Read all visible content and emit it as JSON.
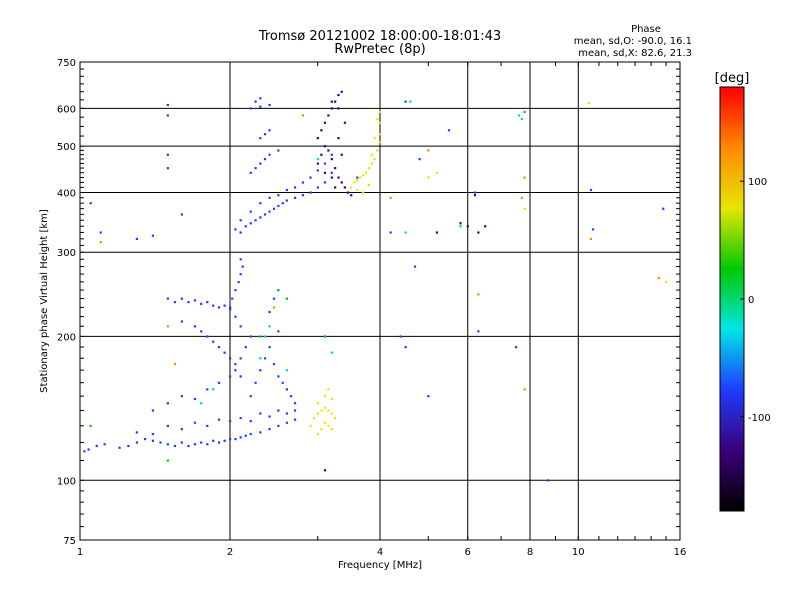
{
  "chart_data": {
    "type": "scatter",
    "title": "Tromsø 20121002 18:00:00-18:01:43",
    "subtitle": "RwPretec (8p)",
    "xlabel": "Frequency [MHz]",
    "ylabel": "Stationary phase Virtual Height [km]",
    "x_scale": "log",
    "y_scale": "log",
    "xlim": [
      1,
      16
    ],
    "ylim": [
      75,
      750
    ],
    "x_ticks": [
      1,
      2,
      4,
      6,
      8,
      10,
      16
    ],
    "y_ticks": [
      75,
      100,
      200,
      300,
      400,
      500,
      600,
      750
    ],
    "grid": true,
    "phase_info": {
      "heading": "Phase",
      "line1": "mean, sd,O: -90.0, 16.1",
      "line2": "mean, sd,X: 82.6, 21.3"
    },
    "colorbar": {
      "label": "[deg]",
      "range": [
        -180,
        180
      ],
      "ticks": [
        -100,
        0,
        100
      ],
      "colors": [
        "#000000",
        "#3a007a",
        "#1e3cff",
        "#00e6e6",
        "#00c800",
        "#e6e600",
        "#ff8800",
        "#ff0000"
      ]
    },
    "series": [
      {
        "name": "O",
        "color": "#1e3cff",
        "description": "",
        "points": [
          [
            1.02,
            115
          ],
          [
            1.04,
            116
          ],
          [
            1.08,
            118
          ],
          [
            1.12,
            119
          ],
          [
            1.2,
            117
          ],
          [
            1.25,
            118
          ],
          [
            1.3,
            120
          ],
          [
            1.35,
            122
          ],
          [
            1.4,
            121
          ],
          [
            1.45,
            120
          ],
          [
            1.5,
            119
          ],
          [
            1.55,
            118
          ],
          [
            1.6,
            120
          ],
          [
            1.65,
            118
          ],
          [
            1.7,
            119
          ],
          [
            1.75,
            120
          ],
          [
            1.8,
            119
          ],
          [
            1.85,
            121
          ],
          [
            1.9,
            120
          ],
          [
            1.95,
            121
          ],
          [
            2.0,
            122
          ],
          [
            2.05,
            122
          ],
          [
            2.1,
            123
          ],
          [
            2.15,
            124
          ],
          [
            2.2,
            125
          ],
          [
            2.3,
            126
          ],
          [
            2.4,
            128
          ],
          [
            2.5,
            130
          ],
          [
            2.6,
            132
          ],
          [
            2.7,
            134
          ],
          [
            1.3,
            126
          ],
          [
            1.4,
            125
          ],
          [
            1.5,
            130
          ],
          [
            1.6,
            128
          ],
          [
            1.7,
            132
          ],
          [
            1.8,
            130
          ],
          [
            1.9,
            134
          ],
          [
            2.0,
            133
          ],
          [
            2.1,
            135
          ],
          [
            2.2,
            133
          ],
          [
            2.3,
            138
          ],
          [
            2.4,
            136
          ],
          [
            2.5,
            140
          ],
          [
            2.6,
            138
          ],
          [
            2.7,
            140
          ],
          [
            1.4,
            140
          ],
          [
            1.5,
            145
          ],
          [
            1.6,
            150
          ],
          [
            1.7,
            148
          ],
          [
            1.8,
            155
          ],
          [
            1.9,
            160
          ],
          [
            2.0,
            165
          ],
          [
            2.05,
            175
          ],
          [
            2.1,
            180
          ],
          [
            2.15,
            190
          ],
          [
            2.2,
            200
          ],
          [
            2.1,
            210
          ],
          [
            2.05,
            220
          ],
          [
            2.0,
            230
          ],
          [
            2.02,
            240
          ],
          [
            2.05,
            250
          ],
          [
            2.08,
            260
          ],
          [
            2.1,
            270
          ],
          [
            2.12,
            280
          ],
          [
            2.1,
            290
          ],
          [
            1.5,
            240
          ],
          [
            1.55,
            236
          ],
          [
            1.6,
            240
          ],
          [
            1.65,
            236
          ],
          [
            1.7,
            238
          ],
          [
            1.75,
            234
          ],
          [
            1.8,
            236
          ],
          [
            1.85,
            232
          ],
          [
            1.9,
            230
          ],
          [
            1.95,
            232
          ],
          [
            2.0,
            228
          ],
          [
            1.6,
            215
          ],
          [
            1.7,
            210
          ],
          [
            1.75,
            205
          ],
          [
            1.8,
            200
          ],
          [
            1.85,
            195
          ],
          [
            1.9,
            190
          ],
          [
            1.95,
            185
          ],
          [
            2.0,
            180
          ],
          [
            2.05,
            170
          ],
          [
            2.1,
            165
          ],
          [
            2.2,
            150
          ],
          [
            2.25,
            160
          ],
          [
            2.3,
            170
          ],
          [
            2.35,
            180
          ],
          [
            2.4,
            190
          ],
          [
            2.45,
            175
          ],
          [
            2.5,
            165
          ],
          [
            2.55,
            160
          ],
          [
            2.6,
            155
          ],
          [
            2.65,
            150
          ],
          [
            2.7,
            145
          ],
          [
            2.5,
            205
          ],
          [
            2.4,
            225
          ],
          [
            2.45,
            240
          ],
          [
            2.5,
            250
          ],
          [
            2.05,
            335
          ],
          [
            2.1,
            330
          ],
          [
            2.15,
            340
          ],
          [
            2.2,
            345
          ],
          [
            2.25,
            350
          ],
          [
            2.3,
            355
          ],
          [
            2.35,
            360
          ],
          [
            2.4,
            365
          ],
          [
            2.45,
            370
          ],
          [
            2.5,
            375
          ],
          [
            2.55,
            380
          ],
          [
            2.6,
            385
          ],
          [
            2.7,
            390
          ],
          [
            2.8,
            395
          ],
          [
            2.9,
            400
          ],
          [
            3.0,
            410
          ],
          [
            3.1,
            420
          ],
          [
            3.2,
            440
          ],
          [
            2.1,
            350
          ],
          [
            2.2,
            365
          ],
          [
            2.3,
            380
          ],
          [
            2.4,
            390
          ],
          [
            2.5,
            395
          ],
          [
            2.6,
            405
          ],
          [
            2.7,
            410
          ],
          [
            2.8,
            420
          ],
          [
            2.9,
            430
          ],
          [
            3.0,
            445
          ],
          [
            3.1,
            460
          ],
          [
            3.2,
            480
          ],
          [
            2.2,
            440
          ],
          [
            2.25,
            450
          ],
          [
            2.3,
            460
          ],
          [
            2.35,
            470
          ],
          [
            2.4,
            480
          ],
          [
            2.5,
            490
          ],
          [
            2.3,
            520
          ],
          [
            2.35,
            530
          ],
          [
            2.4,
            540
          ],
          [
            2.2,
            600
          ],
          [
            2.3,
            605
          ],
          [
            2.4,
            610
          ],
          [
            2.25,
            620
          ],
          [
            2.3,
            630
          ],
          [
            1.5,
            610
          ],
          [
            1.5,
            580
          ],
          [
            1.5,
            480
          ],
          [
            1.5,
            450
          ],
          [
            1.6,
            360
          ],
          [
            1.4,
            325
          ],
          [
            1.3,
            320
          ],
          [
            1.1,
            330
          ],
          [
            1.05,
            380
          ],
          [
            4.5,
            620
          ],
          [
            4.8,
            470
          ],
          [
            5.5,
            540
          ],
          [
            4.4,
            200
          ],
          [
            4.5,
            190
          ],
          [
            4.7,
            280
          ],
          [
            5.0,
            150
          ],
          [
            6.3,
            205
          ],
          [
            6.2,
            400
          ],
          [
            7.5,
            190
          ],
          [
            8.7,
            100
          ],
          [
            10.6,
            405
          ],
          [
            10.7,
            335
          ],
          [
            14.8,
            370
          ],
          [
            3.6,
            430
          ],
          [
            4.2,
            330
          ]
        ]
      },
      {
        "name": "",
        "color": "#3a007a",
        "description": "",
        "points": [
          [
            3.0,
            520
          ],
          [
            3.05,
            540
          ],
          [
            3.1,
            560
          ],
          [
            3.15,
            580
          ],
          [
            3.2,
            600
          ],
          [
            3.25,
            620
          ],
          [
            3.3,
            640
          ],
          [
            3.35,
            650
          ],
          [
            3.1,
            500
          ],
          [
            3.15,
            490
          ],
          [
            3.2,
            470
          ],
          [
            3.25,
            450
          ],
          [
            3.3,
            430
          ],
          [
            3.35,
            420
          ],
          [
            3.4,
            410
          ],
          [
            3.45,
            400
          ],
          [
            3.5,
            395
          ],
          [
            3.2,
            620
          ],
          [
            3.3,
            600
          ],
          [
            3.4,
            560
          ],
          [
            3.3,
            520
          ],
          [
            3.35,
            480
          ],
          [
            3.0,
            460
          ],
          [
            3.05,
            480
          ],
          [
            3.1,
            440
          ],
          [
            3.2,
            430
          ],
          [
            3.25,
            410
          ],
          [
            5.8,
            345
          ],
          [
            6.0,
            340
          ],
          [
            6.3,
            330
          ],
          [
            6.5,
            340
          ],
          [
            6.2,
            395
          ],
          [
            5.2,
            330
          ],
          [
            3.1,
            105
          ]
        ]
      },
      {
        "name": "X",
        "color": "#e6e600",
        "description": "",
        "points": [
          [
            3.5,
            410
          ],
          [
            3.55,
            420
          ],
          [
            3.6,
            425
          ],
          [
            3.65,
            430
          ],
          [
            3.7,
            435
          ],
          [
            3.75,
            440
          ],
          [
            3.8,
            450
          ],
          [
            3.85,
            460
          ],
          [
            3.9,
            470
          ],
          [
            3.95,
            490
          ],
          [
            4.0,
            510
          ],
          [
            4.0,
            530
          ],
          [
            4.0,
            560
          ],
          [
            4.0,
            590
          ],
          [
            3.95,
            570
          ],
          [
            3.9,
            520
          ],
          [
            3.85,
            480
          ],
          [
            3.6,
            405
          ],
          [
            3.7,
            400
          ],
          [
            3.8,
            415
          ],
          [
            2.9,
            130
          ],
          [
            2.95,
            135
          ],
          [
            3.0,
            138
          ],
          [
            3.05,
            140
          ],
          [
            3.1,
            142
          ],
          [
            3.15,
            140
          ],
          [
            3.2,
            138
          ],
          [
            3.25,
            135
          ],
          [
            3.0,
            125
          ],
          [
            3.05,
            128
          ],
          [
            3.1,
            132
          ],
          [
            3.15,
            130
          ],
          [
            3.2,
            128
          ],
          [
            3.0,
            145
          ],
          [
            3.1,
            150
          ],
          [
            3.2,
            148
          ],
          [
            3.15,
            155
          ],
          [
            5.0,
            430
          ],
          [
            5.2,
            440
          ],
          [
            10.5,
            615
          ],
          [
            7.8,
            370
          ],
          [
            15.0,
            260
          ]
        ]
      },
      {
        "name": "",
        "color": "#00d0d0",
        "description": "",
        "points": [
          [
            2.35,
            200
          ],
          [
            2.4,
            210
          ],
          [
            2.3,
            180
          ],
          [
            2.6,
            170
          ],
          [
            1.75,
            145
          ],
          [
            1.85,
            155
          ],
          [
            3.1,
            200
          ],
          [
            3.2,
            185
          ],
          [
            3.0,
            470
          ],
          [
            4.5,
            330
          ],
          [
            5.8,
            340
          ],
          [
            7.6,
            580
          ],
          [
            7.7,
            570
          ],
          [
            4.6,
            620
          ]
        ]
      },
      {
        "name": "",
        "color": "#ff8800",
        "description": "",
        "points": [
          [
            1.5,
            210
          ],
          [
            1.55,
            175
          ],
          [
            2.45,
            230
          ],
          [
            2.8,
            580
          ],
          [
            4.2,
            390
          ],
          [
            5.0,
            490
          ],
          [
            6.3,
            245
          ],
          [
            7.8,
            430
          ],
          [
            7.7,
            390
          ],
          [
            7.8,
            155
          ],
          [
            10.6,
            320
          ],
          [
            14.5,
            265
          ],
          [
            1.1,
            315
          ]
        ]
      },
      {
        "name": "",
        "color": "#00c800",
        "description": "",
        "points": [
          [
            1.05,
            130
          ],
          [
            1.5,
            110
          ],
          [
            2.3,
            200
          ],
          [
            2.5,
            250
          ],
          [
            3.1,
            200
          ],
          [
            7.8,
            590
          ],
          [
            2.6,
            240
          ]
        ]
      }
    ]
  }
}
